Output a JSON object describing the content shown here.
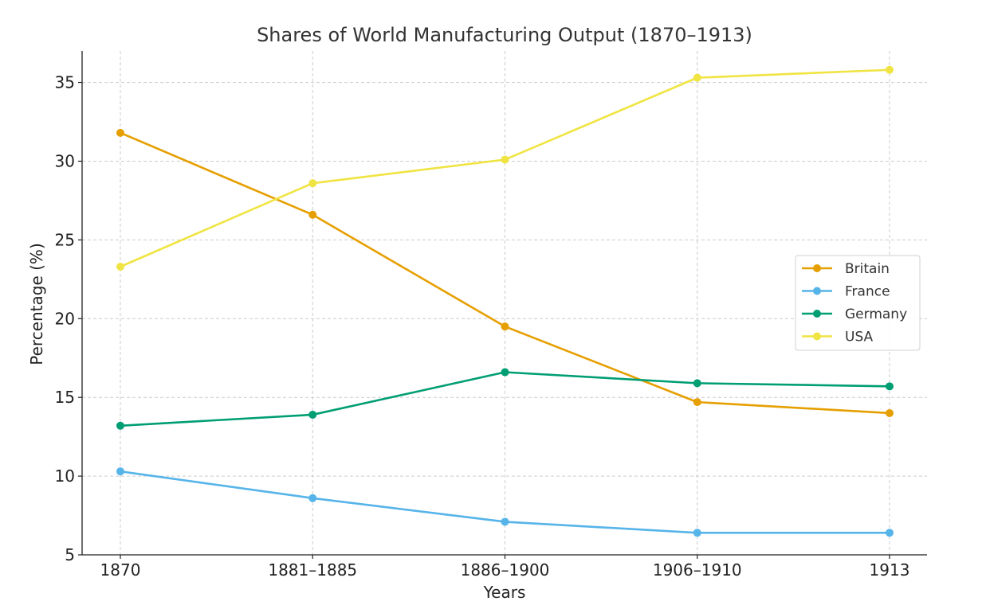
{
  "chart_data": {
    "type": "line",
    "title": "Shares of World Manufacturing Output (1870–1913)",
    "xlabel": "Years",
    "ylabel": "Percentage (%)",
    "categories": [
      "1870",
      "1881–1885",
      "1886–1900",
      "1906–1910",
      "1913"
    ],
    "ylim": [
      5,
      37
    ],
    "yticks": [
      "5",
      "10",
      "15",
      "20",
      "25",
      "30",
      "35"
    ],
    "grid": true,
    "legend_position": "center-right",
    "series": [
      {
        "name": "Britain",
        "color": "#E69F00",
        "values": [
          31.8,
          26.6,
          19.5,
          14.7,
          14.0
        ]
      },
      {
        "name": "France",
        "color": "#56B4E9",
        "values": [
          10.3,
          8.6,
          7.1,
          6.4,
          6.4
        ]
      },
      {
        "name": "Germany",
        "color": "#009E73",
        "values": [
          13.2,
          13.9,
          16.6,
          15.9,
          15.7
        ]
      },
      {
        "name": "USA",
        "color": "#F0E442",
        "values": [
          23.3,
          28.6,
          30.1,
          35.3,
          35.8
        ]
      }
    ]
  }
}
